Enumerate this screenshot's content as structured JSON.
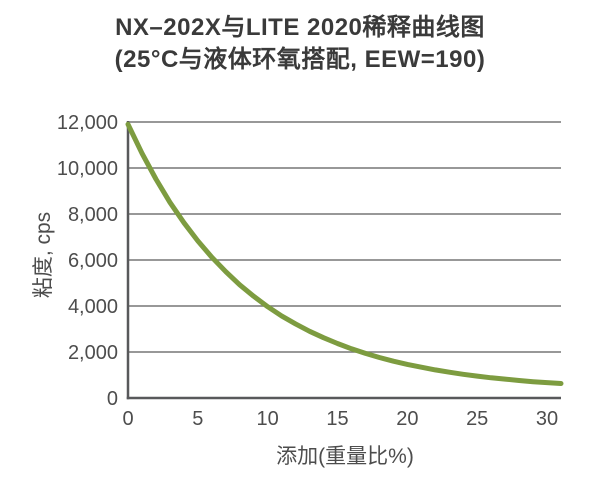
{
  "colors": {
    "background": "#ffffff",
    "curve": "#7d9c40",
    "grid": "#767676",
    "axis": "#58595b",
    "title_text": "#3a3a3a",
    "tick_text": "#4d4d4d"
  },
  "chart_data": {
    "type": "line",
    "title": "NX–202X与LITE 2020稀释曲线图",
    "subtitle": "(25°C与液体环氧搭配, EEW=190)",
    "xlabel": "添加(重量比%)",
    "ylabel": "粘度, cps",
    "xlim": [
      0,
      31
    ],
    "ylim": [
      0,
      12000
    ],
    "x_ticks": [
      0,
      5,
      10,
      15,
      20,
      25,
      30
    ],
    "x_tick_labels": [
      "0",
      "5",
      "10",
      "15",
      "20",
      "25",
      "30"
    ],
    "y_ticks": [
      0,
      2000,
      4000,
      6000,
      8000,
      10000,
      12000
    ],
    "y_tick_labels": [
      "0",
      "2,000",
      "4,000",
      "6,000",
      "8,000",
      "10,000",
      "12,000"
    ],
    "grid": "horizontal",
    "legend": "none",
    "series": [
      {
        "color": "#7d9c40",
        "x": [
          0,
          1,
          2,
          3,
          4,
          5,
          6,
          7,
          8,
          9,
          10,
          11,
          12,
          13,
          14,
          15,
          16,
          17,
          18,
          19,
          20,
          21,
          22,
          23,
          24,
          25,
          26,
          27,
          28,
          29,
          30,
          31
        ],
        "y": [
          11900,
          10640,
          9520,
          8510,
          7620,
          6830,
          6120,
          5490,
          4920,
          4420,
          3970,
          3570,
          3220,
          2900,
          2620,
          2370,
          2140,
          1940,
          1760,
          1600,
          1460,
          1340,
          1220,
          1120,
          1030,
          950,
          880,
          820,
          760,
          710,
          670,
          630
        ]
      }
    ]
  }
}
